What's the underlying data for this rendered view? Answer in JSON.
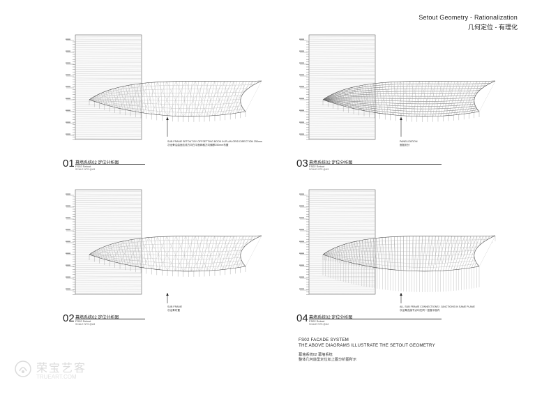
{
  "header": {
    "title_en": "Setout Geometry - Rationalization",
    "title_cn": "几何定位 - 有理化"
  },
  "panels": [
    {
      "num": "01",
      "title": "幕墙系统02  定位分析图",
      "subtitle": "FS02 Setout",
      "scale": "SCALE       NTS @A3",
      "annotation_en": "SUB FRAME SETOUT BY OFFSETTING BOOK IN PLAN GRID DIRECTION 250mm",
      "annotation_cn": "次龙骨沿曲面法线方向在平面网格方向偏移250mm布置"
    },
    {
      "num": "03",
      "title": "幕墙系统02  定位分析图",
      "subtitle": "FS02 Setout",
      "scale": "SCALE       NTS @A3",
      "annotation_en": "PANELIZATION",
      "annotation_cn": "面板划分"
    },
    {
      "num": "02",
      "title": "幕墙系统02  定位分析图",
      "subtitle": "FS02 Setout",
      "scale": "SCALE       NTS @A3",
      "annotation_en": "SUB FRAME",
      "annotation_cn": "次龙骨布置"
    },
    {
      "num": "04",
      "title": "幕墙系统02  定位分析图",
      "subtitle": "FS02 Setout",
      "scale": "SCALE       NTS @A3",
      "annotation_en": "ALL SUB FRAME CONNECTIONS / JUNCTIONS IN SAME PLANE",
      "annotation_cn": "次龙骨连接节点均在同一竖直平面内"
    }
  ],
  "system": {
    "en_line1": "FS02 FACADE SYSTEM",
    "en_line2": "THE ABOVE DIAGRAMS ILLUSTRATE THE SETOUT GEOMETRY",
    "cn_line1": "幕墙系统02  幕墙系统",
    "cn_line2": "整体几何造型定位如上图分析图所示"
  },
  "watermark": {
    "cn": "荣宝艺客",
    "en": "TRUEART.COM"
  }
}
